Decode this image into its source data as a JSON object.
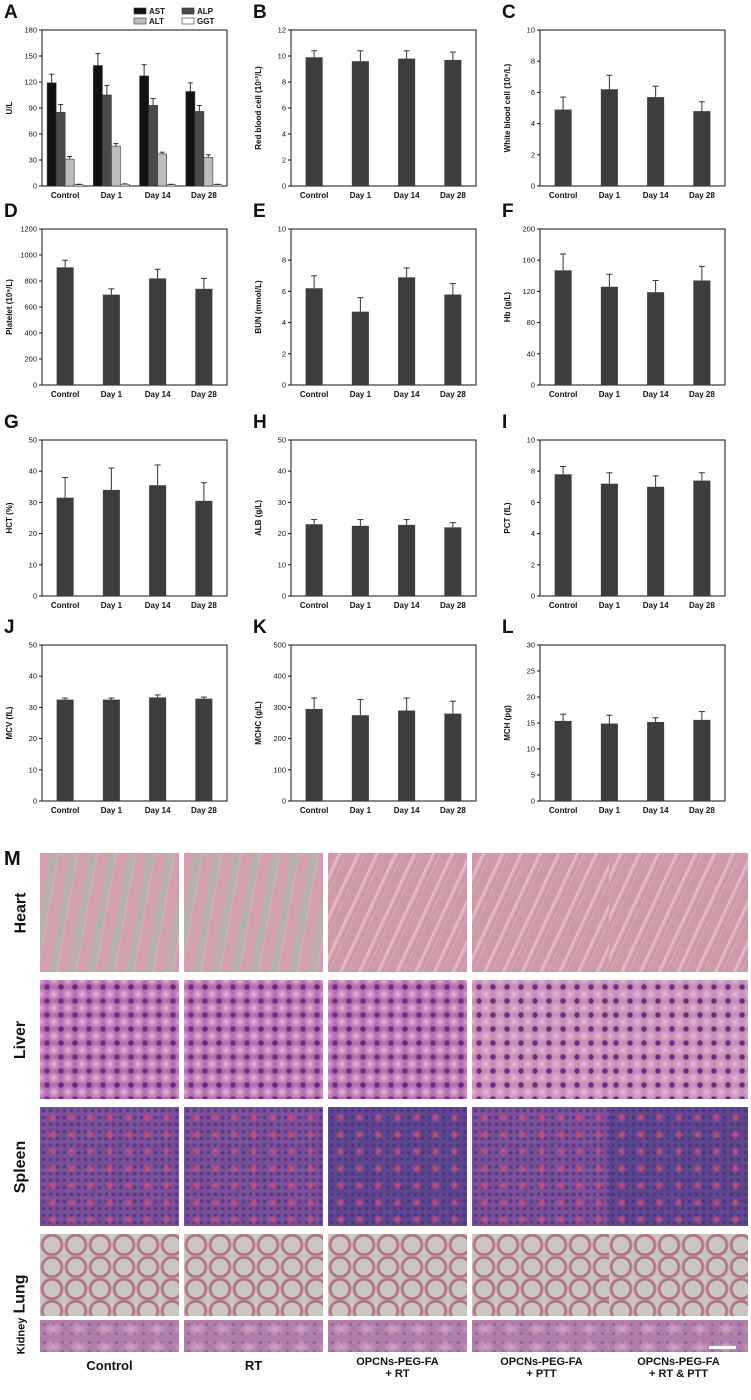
{
  "colors": {
    "bar": "#3d3d3d",
    "ast": "#111111",
    "alp": "#4a4a4a",
    "alt": "#bdbdbd",
    "ggt": "#ffffff"
  },
  "chart_data": [
    {
      "panel": "A",
      "type": "bar",
      "ylabel": "U/L",
      "ylim": [
        0,
        180
      ],
      "yticks": [
        0,
        30,
        60,
        90,
        120,
        150,
        180
      ],
      "categories": [
        "Control",
        "Day 1",
        "Day 14",
        "Day 28"
      ],
      "legend": "top-right",
      "series": [
        {
          "name": "AST",
          "values": [
            119,
            139,
            127,
            109
          ],
          "errors": [
            10,
            14,
            13,
            10
          ],
          "color": "#111111"
        },
        {
          "name": "ALP",
          "values": [
            85,
            105,
            93,
            86
          ],
          "errors": [
            9,
            11,
            8,
            7
          ],
          "color": "#4a4a4a"
        },
        {
          "name": "ALT",
          "values": [
            31,
            46,
            37,
            33
          ],
          "errors": [
            3,
            3,
            2,
            3
          ],
          "color": "#bdbdbd"
        },
        {
          "name": "GGT",
          "values": [
            1.5,
            2,
            1.5,
            1.5
          ],
          "errors": [
            0.5,
            0.5,
            0.5,
            0.5
          ],
          "color": "#ffffff"
        }
      ]
    },
    {
      "panel": "B",
      "type": "bar",
      "ylabel": "Red blood cell (10¹²/L)",
      "ylim": [
        0,
        12
      ],
      "yticks": [
        0,
        2,
        4,
        6,
        8,
        10,
        12
      ],
      "categories": [
        "Control",
        "Day 1",
        "Day 14",
        "Day 28"
      ],
      "values": [
        9.9,
        9.6,
        9.8,
        9.7
      ],
      "errors": [
        0.5,
        0.8,
        0.6,
        0.6
      ]
    },
    {
      "panel": "C",
      "type": "bar",
      "ylabel": "White blood cell (10⁹/L)",
      "ylim": [
        0,
        10
      ],
      "yticks": [
        0,
        2,
        4,
        6,
        8,
        10
      ],
      "categories": [
        "Control",
        "Day 1",
        "Day 14",
        "Day 28"
      ],
      "values": [
        4.9,
        6.2,
        5.7,
        4.8
      ],
      "errors": [
        0.8,
        0.9,
        0.7,
        0.6
      ]
    },
    {
      "panel": "D",
      "type": "bar",
      "ylabel": "Platelet (10⁹/L)",
      "ylim": [
        0,
        1200
      ],
      "yticks": [
        0,
        200,
        400,
        600,
        800,
        1000,
        1200
      ],
      "categories": [
        "Control",
        "Day 1",
        "Day 14",
        "Day 28"
      ],
      "values": [
        905,
        695,
        820,
        740
      ],
      "errors": [
        55,
        45,
        70,
        80
      ]
    },
    {
      "panel": "E",
      "type": "bar",
      "ylabel": "BUN (mmol/L)",
      "ylim": [
        0,
        10
      ],
      "yticks": [
        0,
        2,
        4,
        6,
        8,
        10
      ],
      "categories": [
        "Control",
        "Day 1",
        "Day 14",
        "Day 28"
      ],
      "values": [
        6.2,
        4.7,
        6.9,
        5.8
      ],
      "errors": [
        0.8,
        0.9,
        0.6,
        0.7
      ]
    },
    {
      "panel": "F",
      "type": "bar",
      "ylabel": "Hb (g/L)",
      "ylim": [
        0,
        200
      ],
      "yticks": [
        0,
        40,
        80,
        120,
        160,
        200
      ],
      "categories": [
        "Control",
        "Day 1",
        "Day 14",
        "Day 28"
      ],
      "values": [
        147,
        126,
        119,
        134
      ],
      "errors": [
        21,
        16,
        15,
        18
      ]
    },
    {
      "panel": "G",
      "type": "bar",
      "ylabel": "HCT (%)",
      "ylim": [
        0,
        50
      ],
      "yticks": [
        0,
        10,
        20,
        30,
        40,
        50
      ],
      "categories": [
        "Control",
        "Day 1",
        "Day 14",
        "Day 28"
      ],
      "values": [
        31.5,
        34,
        35.5,
        30.5
      ],
      "errors": [
        6.5,
        7,
        6.5,
        5.8
      ]
    },
    {
      "panel": "H",
      "type": "bar",
      "ylabel": "ALB (g/L)",
      "ylim": [
        0,
        50
      ],
      "yticks": [
        0,
        10,
        20,
        30,
        40,
        50
      ],
      "categories": [
        "Control",
        "Day 1",
        "Day 14",
        "Day 28"
      ],
      "values": [
        23,
        22.5,
        22.8,
        22
      ],
      "errors": [
        1.5,
        2,
        1.7,
        1.5
      ]
    },
    {
      "panel": "I",
      "type": "bar",
      "ylabel": "PCT (fL)",
      "ylim": [
        0,
        10
      ],
      "yticks": [
        0,
        2,
        4,
        6,
        8,
        10
      ],
      "categories": [
        "Control",
        "Day 1",
        "Day 14",
        "Day 28"
      ],
      "values": [
        7.8,
        7.2,
        7.0,
        7.4
      ],
      "errors": [
        0.5,
        0.7,
        0.7,
        0.5
      ]
    },
    {
      "panel": "J",
      "type": "bar",
      "ylabel": "MCV (fL)",
      "ylim": [
        0,
        50
      ],
      "yticks": [
        0,
        10,
        20,
        30,
        40,
        50
      ],
      "categories": [
        "Control",
        "Day 1",
        "Day 14",
        "Day 28"
      ],
      "values": [
        32.5,
        32.5,
        33.2,
        32.8
      ],
      "errors": [
        0.5,
        0.5,
        0.8,
        0.5
      ]
    },
    {
      "panel": "K",
      "type": "bar",
      "ylabel": "MCHC (g/L)",
      "ylim": [
        0,
        500
      ],
      "yticks": [
        0,
        100,
        200,
        300,
        400,
        500
      ],
      "categories": [
        "Control",
        "Day 1",
        "Day 14",
        "Day 28"
      ],
      "values": [
        295,
        275,
        290,
        280
      ],
      "errors": [
        35,
        50,
        40,
        40
      ]
    },
    {
      "panel": "L",
      "type": "bar",
      "ylabel": "MCH (pg)",
      "ylim": [
        0,
        30
      ],
      "yticks": [
        0,
        5,
        10,
        15,
        20,
        25,
        30
      ],
      "categories": [
        "Control",
        "Day 1",
        "Day 14",
        "Day 28"
      ],
      "values": [
        15.4,
        14.9,
        15.2,
        15.6
      ],
      "errors": [
        1.3,
        1.6,
        0.8,
        1.6
      ]
    }
  ],
  "histology": {
    "panel_letter": "M",
    "organs": [
      "Heart",
      "Liver",
      "Spleen",
      "Lung",
      "Kidney"
    ],
    "groups": [
      "Control",
      "RT",
      "OPCNs-PEG-FA\n+ RT",
      "OPCNs-PEG-FA\n+ PTT",
      "OPCNs-PEG-FA\n+ RT & PTT"
    ]
  }
}
